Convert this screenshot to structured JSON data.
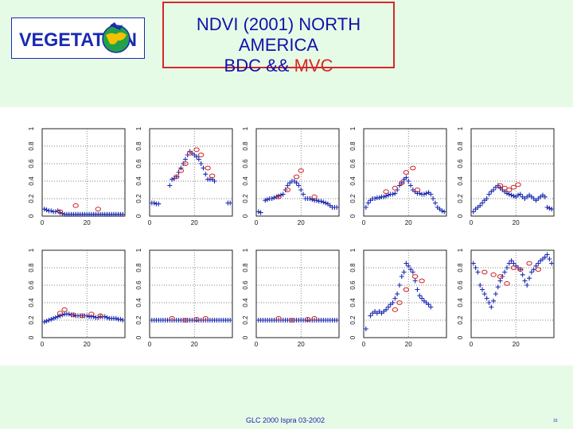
{
  "header": {
    "logo_text": "VEGETATION",
    "title_line1": "NDVI (2001) NORTH AMERICA",
    "title_line2_prefix": "BDC &&",
    "title_line2_highlight": "MVC"
  },
  "footer": {
    "text": "GLC 2000 Ispra 03-2002",
    "page_number": "15"
  },
  "colors": {
    "background": "#e6fbe6",
    "title_text": "#1111aa",
    "accent": "#d62828",
    "bdc_marker": "#1a2ab0",
    "mvc_marker": "#cc2222"
  },
  "chart_data": {
    "type": "scatter",
    "layout": "2x5 small multiples",
    "xlim": [
      0,
      37
    ],
    "ylim": [
      0,
      1
    ],
    "xticks": [
      "0",
      "20"
    ],
    "yticks": [
      "0",
      "0.2",
      "0.4",
      "0.6",
      "0.8",
      "1"
    ],
    "series_names": [
      "BDC",
      "MVC"
    ],
    "panels": [
      {
        "x": [
          1,
          2,
          3,
          4,
          5,
          6,
          7,
          8,
          9,
          10,
          11,
          12,
          13,
          14,
          15,
          16,
          17,
          18,
          19,
          20,
          21,
          22,
          23,
          24,
          25,
          26,
          27,
          28,
          29,
          30,
          31,
          32,
          33,
          34,
          35,
          36
        ],
        "bdc": [
          0.08,
          0.07,
          0.06,
          0.06,
          0.05,
          0.05,
          0.06,
          0.04,
          0.03,
          0.02,
          0.02,
          0.02,
          0.02,
          0.02,
          0.02,
          0.02,
          0.02,
          0.02,
          0.02,
          0.02,
          0.02,
          0.02,
          0.02,
          0.02,
          0.02,
          0.02,
          0.02,
          0.02,
          0.02,
          0.02,
          0.02,
          0.02,
          0.02,
          0.02,
          0.02,
          0.02
        ],
        "mvc_x": [
          8,
          15,
          25
        ],
        "mvc_y": [
          0.05,
          0.12,
          0.08
        ]
      },
      {
        "x": [
          1,
          2,
          3,
          4,
          5,
          6,
          7,
          8,
          9,
          10,
          11,
          12,
          13,
          14,
          15,
          16,
          17,
          18,
          19,
          20,
          21,
          22,
          23,
          24,
          25,
          26,
          27,
          28,
          29,
          30,
          31,
          32,
          33,
          34,
          35,
          36
        ],
        "bdc": [
          0.15,
          0.15,
          0.14,
          0.14,
          null,
          null,
          null,
          null,
          0.35,
          0.42,
          0.43,
          0.45,
          0.5,
          0.55,
          0.6,
          0.65,
          0.7,
          0.74,
          0.72,
          0.7,
          0.68,
          0.65,
          0.6,
          0.55,
          0.48,
          0.42,
          0.42,
          0.42,
          0.4,
          null,
          null,
          null,
          null,
          null,
          0.15,
          0.15
        ],
        "mvc_x": [
          12,
          14,
          16,
          18,
          21,
          23,
          26,
          28
        ],
        "mvc_y": [
          0.45,
          0.52,
          0.6,
          0.72,
          0.76,
          0.7,
          0.55,
          0.46
        ]
      },
      {
        "x": [
          1,
          2,
          3,
          4,
          5,
          6,
          7,
          8,
          9,
          10,
          11,
          12,
          13,
          14,
          15,
          16,
          17,
          18,
          19,
          20,
          21,
          22,
          23,
          24,
          25,
          26,
          27,
          28,
          29,
          30,
          31,
          32,
          33,
          34,
          35,
          36
        ],
        "bdc": [
          0.05,
          0.04,
          null,
          0.18,
          0.19,
          0.2,
          0.2,
          0.21,
          0.22,
          0.23,
          0.24,
          0.25,
          0.3,
          0.35,
          0.38,
          0.4,
          0.4,
          0.38,
          0.35,
          0.3,
          0.25,
          0.2,
          0.2,
          0.2,
          0.19,
          0.18,
          0.18,
          0.17,
          0.17,
          0.16,
          0.15,
          0.14,
          0.12,
          0.1,
          0.1,
          0.1
        ],
        "mvc_x": [
          10,
          14,
          18,
          20,
          26
        ],
        "mvc_y": [
          0.22,
          0.3,
          0.45,
          0.52,
          0.22
        ]
      },
      {
        "x": [
          1,
          2,
          3,
          4,
          5,
          6,
          7,
          8,
          9,
          10,
          11,
          12,
          13,
          14,
          15,
          16,
          17,
          18,
          19,
          20,
          21,
          22,
          23,
          24,
          25,
          26,
          27,
          28,
          29,
          30,
          31,
          32,
          33,
          34,
          35,
          36
        ],
        "bdc": [
          0.1,
          0.15,
          0.18,
          0.2,
          0.2,
          0.21,
          0.21,
          0.22,
          0.22,
          0.23,
          0.24,
          0.25,
          0.25,
          0.26,
          0.3,
          0.35,
          0.38,
          0.42,
          0.44,
          0.4,
          0.35,
          0.3,
          0.28,
          0.26,
          0.26,
          0.25,
          0.25,
          0.26,
          0.27,
          0.25,
          0.2,
          0.15,
          0.1,
          0.08,
          0.06,
          0.05
        ],
        "mvc_x": [
          10,
          14,
          17,
          19,
          22,
          24
        ],
        "mvc_y": [
          0.28,
          0.32,
          0.38,
          0.5,
          0.55,
          0.3
        ]
      },
      {
        "x": [
          1,
          2,
          3,
          4,
          5,
          6,
          7,
          8,
          9,
          10,
          11,
          12,
          13,
          14,
          15,
          16,
          17,
          18,
          19,
          20,
          21,
          22,
          23,
          24,
          25,
          26,
          27,
          28,
          29,
          30,
          31,
          32,
          33,
          34,
          35,
          36
        ],
        "bdc": [
          0.05,
          0.08,
          0.1,
          0.12,
          0.15,
          0.18,
          0.2,
          0.25,
          0.28,
          0.3,
          0.33,
          0.35,
          0.32,
          0.3,
          0.28,
          0.26,
          0.25,
          0.24,
          0.23,
          0.22,
          0.24,
          0.25,
          0.22,
          0.2,
          0.22,
          0.24,
          0.22,
          0.2,
          0.18,
          0.2,
          0.22,
          0.24,
          0.22,
          0.1,
          0.09,
          0.08
        ],
        "mvc_x": [
          13,
          15,
          17,
          19,
          21
        ],
        "mvc_y": [
          0.35,
          0.32,
          0.3,
          0.33,
          0.36
        ]
      },
      {
        "x": [
          1,
          2,
          3,
          4,
          5,
          6,
          7,
          8,
          9,
          10,
          11,
          12,
          13,
          14,
          15,
          16,
          17,
          18,
          19,
          20,
          21,
          22,
          23,
          24,
          25,
          26,
          27,
          28,
          29,
          30,
          31,
          32,
          33,
          34,
          35,
          36
        ],
        "bdc": [
          0.18,
          0.19,
          0.2,
          0.21,
          0.22,
          0.23,
          0.24,
          0.25,
          0.26,
          0.27,
          0.27,
          0.27,
          0.26,
          0.26,
          0.25,
          0.25,
          0.25,
          0.25,
          0.25,
          0.25,
          0.24,
          0.24,
          0.24,
          0.23,
          0.23,
          0.24,
          0.24,
          0.24,
          0.23,
          0.22,
          0.22,
          0.22,
          0.22,
          0.21,
          0.21,
          0.2
        ],
        "mvc_x": [
          8,
          10,
          14,
          18,
          22,
          26
        ],
        "mvc_y": [
          0.28,
          0.32,
          0.26,
          0.25,
          0.27,
          0.25
        ]
      },
      {
        "x": [
          1,
          2,
          3,
          4,
          5,
          6,
          7,
          8,
          9,
          10,
          11,
          12,
          13,
          14,
          15,
          16,
          17,
          18,
          19,
          20,
          21,
          22,
          23,
          24,
          25,
          26,
          27,
          28,
          29,
          30,
          31,
          32,
          33,
          34,
          35,
          36
        ],
        "bdc": [
          0.2,
          0.2,
          0.2,
          0.2,
          0.2,
          0.2,
          0.2,
          0.2,
          0.2,
          0.2,
          0.2,
          0.2,
          0.2,
          0.2,
          0.2,
          0.2,
          0.2,
          0.2,
          0.2,
          0.2,
          0.2,
          0.2,
          0.2,
          0.2,
          0.2,
          0.2,
          0.2,
          0.2,
          0.2,
          0.2,
          0.2,
          0.2,
          0.2,
          0.2,
          0.2,
          0.2
        ],
        "mvc_x": [
          10,
          16,
          21,
          25
        ],
        "mvc_y": [
          0.22,
          0.2,
          0.21,
          0.22
        ]
      },
      {
        "x": [
          1,
          2,
          3,
          4,
          5,
          6,
          7,
          8,
          9,
          10,
          11,
          12,
          13,
          14,
          15,
          16,
          17,
          18,
          19,
          20,
          21,
          22,
          23,
          24,
          25,
          26,
          27,
          28,
          29,
          30,
          31,
          32,
          33,
          34,
          35,
          36
        ],
        "bdc": [
          0.2,
          0.2,
          0.2,
          0.2,
          0.2,
          0.2,
          0.2,
          0.2,
          0.2,
          0.2,
          0.2,
          0.2,
          0.2,
          0.2,
          0.2,
          0.2,
          0.2,
          0.2,
          0.2,
          0.2,
          0.2,
          0.2,
          0.2,
          0.2,
          0.2,
          0.2,
          0.2,
          0.2,
          0.2,
          0.2,
          0.2,
          0.2,
          0.2,
          0.2,
          0.2,
          0.2
        ],
        "mvc_x": [
          10,
          16,
          23,
          26
        ],
        "mvc_y": [
          0.22,
          0.2,
          0.21,
          0.22
        ]
      },
      {
        "x": [
          1,
          2,
          3,
          4,
          5,
          6,
          7,
          8,
          9,
          10,
          11,
          12,
          13,
          14,
          15,
          16,
          17,
          18,
          19,
          20,
          21,
          22,
          23,
          24,
          25,
          26,
          27,
          28,
          29,
          30,
          31,
          32,
          33,
          34,
          35,
          36
        ],
        "bdc": [
          0.1,
          null,
          0.25,
          0.28,
          0.3,
          0.28,
          0.3,
          0.28,
          0.3,
          0.32,
          0.35,
          0.38,
          0.4,
          0.45,
          0.5,
          0.6,
          0.7,
          0.75,
          0.85,
          0.82,
          0.78,
          0.75,
          0.65,
          0.55,
          0.48,
          0.45,
          0.42,
          0.4,
          0.38,
          0.35,
          null,
          null,
          null,
          null,
          null,
          null
        ],
        "mvc_x": [
          14,
          16,
          19,
          23,
          26
        ],
        "mvc_y": [
          0.32,
          0.4,
          0.55,
          0.7,
          0.65
        ]
      },
      {
        "x": [
          1,
          2,
          3,
          4,
          5,
          6,
          7,
          8,
          9,
          10,
          11,
          12,
          13,
          14,
          15,
          16,
          17,
          18,
          19,
          20,
          21,
          22,
          23,
          24,
          25,
          26,
          27,
          28,
          29,
          30,
          31,
          32,
          33,
          34,
          35,
          36
        ],
        "bdc": [
          0.85,
          0.8,
          0.75,
          0.6,
          0.55,
          0.5,
          0.45,
          0.4,
          0.35,
          0.42,
          0.5,
          0.58,
          0.65,
          0.7,
          0.75,
          0.8,
          0.85,
          0.88,
          0.85,
          0.82,
          0.8,
          0.78,
          0.72,
          0.65,
          0.6,
          0.68,
          0.75,
          0.78,
          0.82,
          0.85,
          0.88,
          0.9,
          0.92,
          0.95,
          0.9,
          0.85
        ],
        "mvc_x": [
          6,
          10,
          13,
          16,
          19,
          22,
          26,
          30
        ],
        "mvc_y": [
          0.75,
          0.72,
          0.7,
          0.62,
          0.8,
          0.78,
          0.85,
          0.78
        ]
      }
    ]
  }
}
